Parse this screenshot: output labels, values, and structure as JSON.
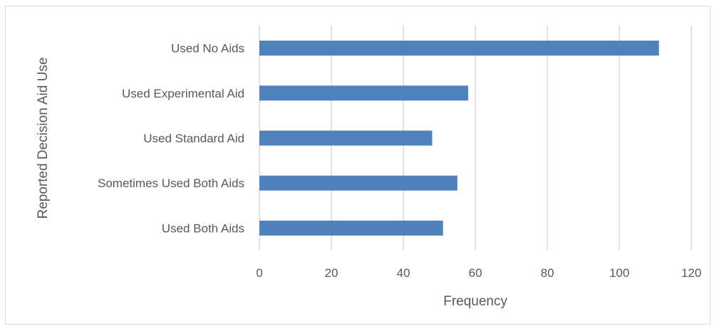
{
  "chart_data": {
    "type": "bar",
    "orientation": "horizontal",
    "title": "",
    "xlabel": "Frequency",
    "ylabel": "Reported Decision Aid Use",
    "categories": [
      "Used No Aids",
      "Used Experimental Aid",
      "Used Standard Aid",
      "Sometimes Used Both Aids",
      "Used Both Aids"
    ],
    "values": [
      111,
      58,
      48,
      55,
      51
    ],
    "xlim": [
      0,
      120
    ],
    "xticks": [
      "0",
      "20",
      "40",
      "60",
      "80",
      "100",
      "120"
    ],
    "grid": true,
    "legend": "none",
    "colors": {
      "bar": "#4f81bd",
      "grid": "#d9d9d9",
      "text": "#595959"
    }
  }
}
